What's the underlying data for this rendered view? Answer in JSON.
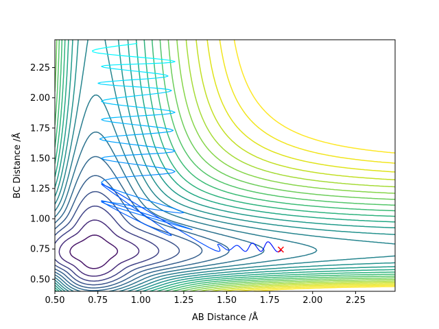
{
  "chart_data": {
    "type": "contour",
    "title": "",
    "xlabel": "AB Distance /Å",
    "ylabel": "BC Distance /Å",
    "xlim": [
      0.5,
      2.48
    ],
    "ylim": [
      0.4,
      2.48
    ],
    "xticks": [
      0.5,
      0.75,
      1.0,
      1.25,
      1.5,
      1.75,
      2.0,
      2.25
    ],
    "xtick_labels": [
      "0.50",
      "0.75",
      "1.00",
      "1.25",
      "1.50",
      "1.75",
      "2.00",
      "2.25"
    ],
    "yticks": [
      0.5,
      0.75,
      1.0,
      1.25,
      1.5,
      1.75,
      2.0,
      2.25
    ],
    "ytick_labels": [
      "0.50",
      "0.75",
      "1.00",
      "1.25",
      "1.50",
      "1.75",
      "2.00",
      "2.25"
    ],
    "colormap": "viridis",
    "grid": false,
    "legend": "none",
    "contour_levels": [
      {
        "level": 1,
        "d1": -0.46,
        "d2": 1.0,
        "asym": 0.0,
        "color": "#440154"
      },
      {
        "level": 2,
        "d1": -0.36,
        "d2": 0.8,
        "asym": 0.0,
        "color": "#46085c"
      },
      {
        "level": 3,
        "d1": -0.26,
        "d2": 0.6,
        "asym": 0.0,
        "color": "#481568"
      },
      {
        "level": 4,
        "d1": -0.16,
        "d2": 0.45,
        "asym": 0.0,
        "color": "#472d7b"
      },
      {
        "level": 5,
        "d1": -0.08,
        "d2": 0.3,
        "asym": 0.0,
        "color": "#404387"
      },
      {
        "level": 6,
        "d1": -0.02,
        "d2": 0.21,
        "asym": 0.0,
        "color": "#3b528b"
      },
      {
        "level": 7,
        "d1": 0.04,
        "d2": 0.122,
        "asym": 0.01,
        "color": "#355f8d"
      },
      {
        "level": 8,
        "d1": 0.09,
        "d2": 0.166,
        "asym": 0.01,
        "color": "#31688e"
      },
      {
        "level": 9,
        "d1": 0.14,
        "d2": 0.222,
        "asym": 0.01,
        "color": "#2c728e"
      },
      {
        "level": 10,
        "d1": 0.18,
        "d2": 0.276,
        "asym": 0.01,
        "color": "#287c8e"
      },
      {
        "level": 11,
        "d1": 0.22,
        "d2": 0.326,
        "asym": 0.01,
        "color": "#25858e"
      },
      {
        "level": 12,
        "d1": 0.26,
        "d2": 0.375,
        "asym": 0.01,
        "color": "#21918c"
      },
      {
        "level": 13,
        "d1": 0.3,
        "d2": 0.425,
        "asym": 0.01,
        "color": "#1f9a8a"
      },
      {
        "level": 14,
        "d1": 0.34,
        "d2": 0.475,
        "asym": 0.01,
        "color": "#22a884"
      },
      {
        "level": 15,
        "d1": 0.38,
        "d2": 0.525,
        "asym": 0.01,
        "color": "#2db27d"
      },
      {
        "level": 16,
        "d1": 0.42,
        "d2": 0.575,
        "asym": 0.01,
        "color": "#3bbb75"
      },
      {
        "level": 17,
        "d1": 0.46,
        "d2": 0.625,
        "asym": 0.01,
        "color": "#52c569"
      },
      {
        "level": 18,
        "d1": 0.5,
        "d2": 0.67,
        "asym": 0.01,
        "color": "#6ccd5a"
      },
      {
        "level": 19,
        "d1": 0.54,
        "d2": 0.72,
        "asym": 0.01,
        "color": "#86d549"
      },
      {
        "level": 20,
        "d1": 0.58,
        "d2": 0.765,
        "asym": 0.01,
        "color": "#a5db36"
      },
      {
        "level": 21,
        "d1": 0.62,
        "d2": 0.815,
        "asym": 0.01,
        "color": "#c2df23"
      },
      {
        "level": 22,
        "d1": 0.66,
        "d2": 0.86,
        "asym": 0.01,
        "color": "#dfe318"
      },
      {
        "level": 23,
        "d1": 0.7,
        "d2": 0.895,
        "asym": 0.01,
        "color": "#f1e51d"
      },
      {
        "level": 24,
        "d1": 0.9,
        "d2": 0.9,
        "asym": 0.0,
        "color": "#fde725"
      }
    ],
    "wall_contours": {
      "colors": [
        "#21918c",
        "#1f9a8a",
        "#22a884",
        "#2db27d",
        "#3bbb75",
        "#52c569",
        "#6ccd5a",
        "#86d549",
        "#a5db36",
        "#c2df23",
        "#dfe318",
        "#fde725",
        "#fde725",
        "#fde725"
      ],
      "offsets_x": [
        0.0,
        0.005,
        0.01,
        0.015,
        0.02,
        0.025,
        0.03,
        0.035,
        0.04,
        0.045,
        0.05,
        0.055,
        0.06,
        0.065
      ]
    },
    "trajectory": {
      "color_start": "#00ffff",
      "color_end": "#0000ff",
      "points": [
        [
          0.98,
          2.45
        ],
        [
          0.72,
          2.38
        ],
        [
          1.2,
          2.3
        ],
        [
          0.77,
          2.26
        ],
        [
          1.16,
          2.18
        ],
        [
          0.75,
          2.12
        ],
        [
          1.18,
          2.06
        ],
        [
          0.77,
          1.97
        ],
        [
          1.2,
          1.88
        ],
        [
          0.77,
          1.82
        ],
        [
          1.19,
          1.73
        ],
        [
          0.76,
          1.66
        ],
        [
          1.2,
          1.56
        ],
        [
          0.77,
          1.5
        ],
        [
          1.2,
          1.39
        ],
        [
          0.77,
          1.3
        ],
        [
          1.25,
          1.05
        ],
        [
          0.77,
          1.14
        ],
        [
          1.3,
          0.91
        ],
        [
          0.77,
          1.15
        ],
        [
          1.18,
          0.86
        ],
        [
          0.77,
          1.29
        ],
        [
          1.4,
          0.76
        ],
        [
          1.45,
          0.79
        ],
        [
          1.51,
          0.74
        ],
        [
          1.56,
          0.78
        ],
        [
          1.61,
          0.73
        ],
        [
          1.65,
          0.8
        ],
        [
          1.7,
          0.73
        ],
        [
          1.74,
          0.81
        ],
        [
          1.79,
          0.73
        ],
        [
          1.82,
          0.74
        ]
      ]
    },
    "marker": {
      "x": 1.815,
      "y": 0.745,
      "symbol": "x",
      "color": "#ff0000"
    }
  }
}
